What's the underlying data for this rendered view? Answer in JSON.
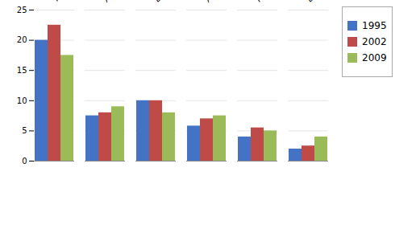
{
  "chart_data": {
    "type": "bar",
    "categories": [
      "Textile",
      "Agricole",
      "Extractions minières",
      "Autres manuf",
      "Produits métall",
      "Equipements"
    ],
    "series": [
      {
        "name": "1995",
        "color": "#4472C4",
        "values": [
          20.0,
          7.5,
          10.0,
          5.8,
          4.0,
          2.0
        ]
      },
      {
        "name": "2002",
        "color": "#BE4B48",
        "values": [
          22.5,
          8.0,
          10.0,
          7.0,
          5.5,
          2.5
        ]
      },
      {
        "name": "2009",
        "color": "#9BBB59",
        "values": [
          17.5,
          9.0,
          8.0,
          7.5,
          5.0,
          4.0
        ]
      }
    ],
    "ylim": [
      0,
      25
    ],
    "yticks": [
      0,
      5,
      10,
      15,
      20,
      25
    ],
    "grid": true,
    "legend": "right"
  }
}
